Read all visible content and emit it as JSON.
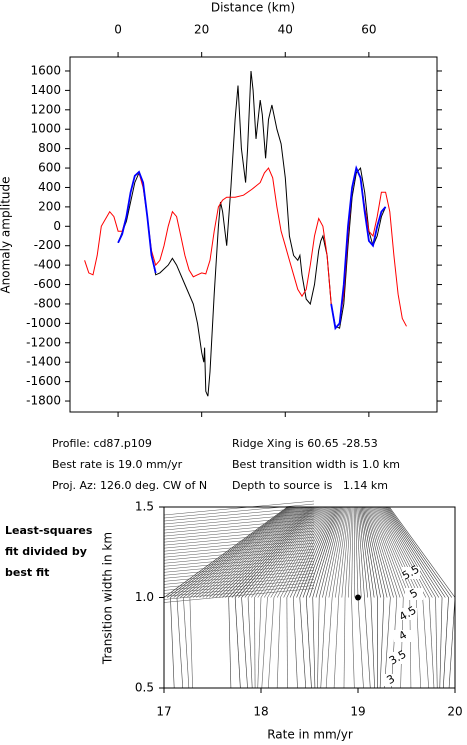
{
  "chart_data": [
    {
      "type": "line",
      "x_label": "Distance (km)",
      "y_label": "Anomaly amplitude",
      "xlim": [
        -11.5,
        76.3
      ],
      "ylim": [
        -1913,
        1744
      ],
      "xticks": [
        0,
        20,
        40,
        60
      ],
      "yticks": [
        -1800,
        -1600,
        -1400,
        -1200,
        -1000,
        -800,
        -600,
        -400,
        -200,
        0,
        200,
        400,
        600,
        800,
        1000,
        1200,
        1400,
        1600
      ],
      "series": [
        {
          "color": "#000000",
          "x": [
            0,
            2,
            4,
            5,
            6,
            7,
            8,
            9,
            10,
            12,
            13,
            14,
            16,
            18,
            19,
            20,
            20.5,
            20.7,
            21,
            21.5,
            22,
            23,
            24,
            24.5,
            25,
            26,
            27,
            28,
            28.7,
            29.5,
            30.5,
            31,
            31.8,
            32.3,
            33,
            34,
            34.5,
            35.3,
            36,
            36.8,
            38,
            39,
            40,
            41,
            42,
            43,
            43.5,
            44,
            45,
            46,
            47,
            48,
            48.5,
            49,
            50,
            51,
            52,
            53,
            54,
            55,
            56,
            57,
            58,
            59,
            60,
            61,
            62,
            63,
            64
          ],
          "values": [
            -170,
            50,
            450,
            550,
            450,
            100,
            -300,
            -500,
            -480,
            -400,
            -330,
            -400,
            -600,
            -800,
            -1000,
            -1300,
            -1400,
            -1250,
            -1700,
            -1750,
            -1500,
            -700,
            0,
            250,
            150,
            -200,
            400,
            1100,
            1450,
            800,
            450,
            800,
            1600,
            1400,
            900,
            1300,
            1150,
            700,
            1100,
            1250,
            1000,
            850,
            500,
            -100,
            -300,
            -350,
            -300,
            -500,
            -750,
            -800,
            -600,
            -250,
            -150,
            -100,
            -300,
            -800,
            -1030,
            -1050,
            -800,
            -200,
            300,
            550,
            600,
            350,
            -50,
            -200,
            -100,
            100,
            200
          ]
        },
        {
          "color": "#ff0000",
          "x": [
            -8,
            -7,
            -6,
            -5,
            -4,
            -2,
            -1,
            0,
            1,
            2,
            3,
            4,
            5,
            6,
            7,
            8,
            9,
            10,
            11,
            12,
            13,
            14,
            15,
            16,
            17,
            18,
            19,
            20,
            21,
            22,
            23,
            24,
            25,
            26,
            28,
            30,
            32,
            34,
            35,
            36,
            37,
            38,
            39,
            40,
            41,
            42,
            43,
            44,
            45,
            46,
            47,
            48,
            49,
            50,
            51,
            52,
            53,
            54,
            55,
            56,
            57,
            58,
            59,
            60,
            61,
            62,
            63,
            64,
            65,
            66,
            67,
            68,
            69
          ],
          "values": [
            -350,
            -480,
            -500,
            -300,
            0,
            150,
            100,
            -50,
            -50,
            100,
            350,
            520,
            550,
            400,
            100,
            -250,
            -400,
            -350,
            -200,
            0,
            150,
            100,
            -100,
            -300,
            -450,
            -520,
            -500,
            -480,
            -490,
            -350,
            -50,
            200,
            270,
            300,
            300,
            320,
            380,
            450,
            550,
            600,
            500,
            200,
            -50,
            -200,
            -350,
            -500,
            -650,
            -720,
            -650,
            -400,
            -100,
            80,
            0,
            -300,
            -800,
            -1050,
            -1000,
            -700,
            -100,
            400,
            600,
            500,
            200,
            -50,
            -100,
            100,
            350,
            350,
            150,
            -300,
            -700,
            -950,
            -1030
          ]
        },
        {
          "color": "#0000ff",
          "x": [
            0,
            1,
            2,
            3,
            4,
            5,
            6,
            7,
            8,
            9,
            30,
            51,
            52,
            53,
            54,
            55,
            56,
            57,
            58,
            59,
            60,
            61,
            62,
            63,
            64
          ],
          "values": [
            -170,
            -80,
            100,
            350,
            520,
            560,
            450,
            100,
            -300,
            -480,
            null,
            -800,
            -1050,
            -1000,
            -600,
            0,
            400,
            600,
            500,
            150,
            -150,
            -200,
            0,
            150,
            200
          ]
        }
      ]
    },
    {
      "type": "contour",
      "x_label": "Rate in mm/yr",
      "y_label": "Transition width in km",
      "xlim": [
        17,
        20
      ],
      "ylim": [
        0.5,
        1.5
      ],
      "xticks": [
        17,
        18,
        19,
        20
      ],
      "yticks": [
        0.5,
        {
          "value": 1,
          "label": "1.0"
        },
        1.5
      ],
      "contour_labels": [
        5.5,
        5,
        4.5,
        4,
        3.5,
        3
      ],
      "best_fit": {
        "x": 19,
        "y": 1
      }
    }
  ],
  "info": [
    "Profile: cd87.p109",
    "Best rate is 19.0 mm/yr",
    "Proj. Az: 126.0 deg. CW of N",
    "Ridge Xing is 60.65 -28.53",
    "Best transition width is 1.0 km",
    "Depth to source is   1.14 km"
  ],
  "note": [
    "Least-squares",
    "fit divided by",
    "best fit"
  ]
}
